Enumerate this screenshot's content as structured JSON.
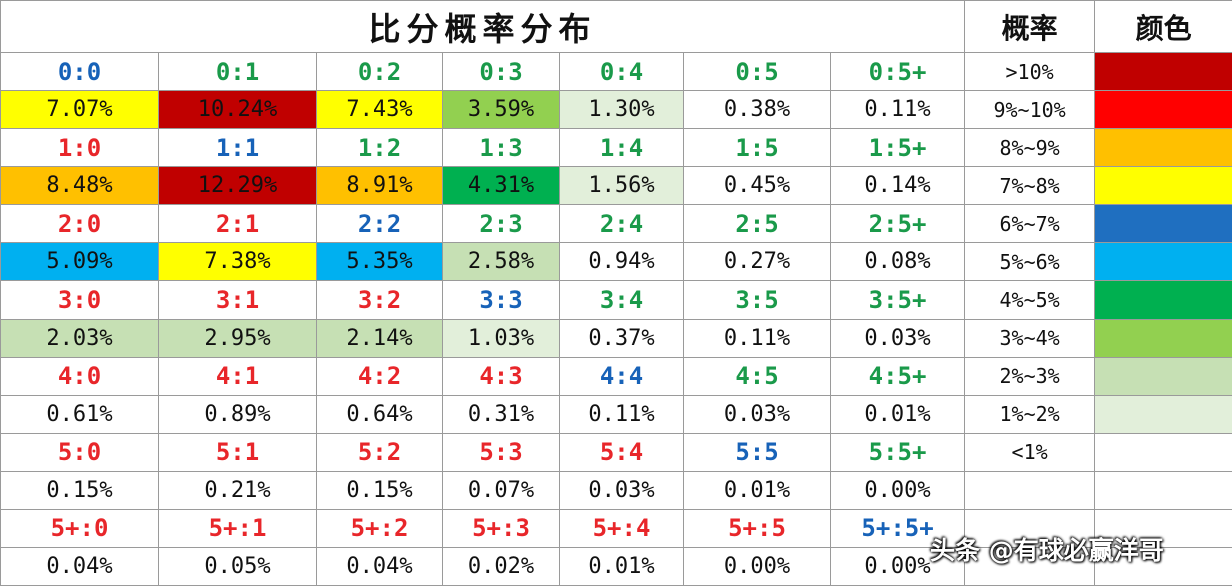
{
  "title": "比分概率分布",
  "legend_headers": {
    "prob": "概率",
    "color": "颜色"
  },
  "colors": {
    "red": "#e8262a",
    "green": "#1a9a4a",
    "blue": "#1762b8",
    "bin_gt10": "#c00000",
    "bin_9_10": "#ff0000",
    "bin_8_9": "#ffc000",
    "bin_7_8": "#ffff00",
    "bin_6_7": "#1f6fc0",
    "bin_5_6": "#00b0f0",
    "bin_4_5": "#00b050",
    "bin_3_4": "#92d050",
    "bin_2_3": "#c6e0b4",
    "bin_1_2": "#e2efda",
    "bin_lt1": "#ffffff"
  },
  "legend": [
    {
      "range": ">10%",
      "color": "#c00000"
    },
    {
      "range": "9%~10%",
      "color": "#ff0000"
    },
    {
      "range": "8%~9%",
      "color": "#ffc000"
    },
    {
      "range": "7%~8%",
      "color": "#ffff00"
    },
    {
      "range": "6%~7%",
      "color": "#1f6fc0"
    },
    {
      "range": "5%~6%",
      "color": "#00b0f0"
    },
    {
      "range": "4%~5%",
      "color": "#00b050"
    },
    {
      "range": "3%~4%",
      "color": "#92d050"
    },
    {
      "range": "2%~3%",
      "color": "#c6e0b4"
    },
    {
      "range": "1%~2%",
      "color": "#e2efda"
    },
    {
      "range": "<1%",
      "color": "#ffffff"
    }
  ],
  "grid": [
    {
      "scores": [
        "0:0",
        "0:1",
        "0:2",
        "0:3",
        "0:4",
        "0:5",
        "0:5+"
      ],
      "score_colors": [
        "blue",
        "green",
        "green",
        "green",
        "green",
        "green",
        "green"
      ],
      "probs": [
        "7.07%",
        "10.24%",
        "7.43%",
        "3.59%",
        "1.30%",
        "0.38%",
        "0.11%"
      ],
      "prob_colors": [
        "#ffff00",
        "#c00000",
        "#ffff00",
        "#92d050",
        "#e2efda",
        "#ffffff",
        "#ffffff"
      ]
    },
    {
      "scores": [
        "1:0",
        "1:1",
        "1:2",
        "1:3",
        "1:4",
        "1:5",
        "1:5+"
      ],
      "score_colors": [
        "red",
        "blue",
        "green",
        "green",
        "green",
        "green",
        "green"
      ],
      "probs": [
        "8.48%",
        "12.29%",
        "8.91%",
        "4.31%",
        "1.56%",
        "0.45%",
        "0.14%"
      ],
      "prob_colors": [
        "#ffc000",
        "#c00000",
        "#ffc000",
        "#00b050",
        "#e2efda",
        "#ffffff",
        "#ffffff"
      ]
    },
    {
      "scores": [
        "2:0",
        "2:1",
        "2:2",
        "2:3",
        "2:4",
        "2:5",
        "2:5+"
      ],
      "score_colors": [
        "red",
        "red",
        "blue",
        "green",
        "green",
        "green",
        "green"
      ],
      "probs": [
        "5.09%",
        "7.38%",
        "5.35%",
        "2.58%",
        "0.94%",
        "0.27%",
        "0.08%"
      ],
      "prob_colors": [
        "#00b0f0",
        "#ffff00",
        "#00b0f0",
        "#c6e0b4",
        "#ffffff",
        "#ffffff",
        "#ffffff"
      ]
    },
    {
      "scores": [
        "3:0",
        "3:1",
        "3:2",
        "3:3",
        "3:4",
        "3:5",
        "3:5+"
      ],
      "score_colors": [
        "red",
        "red",
        "red",
        "blue",
        "green",
        "green",
        "green"
      ],
      "probs": [
        "2.03%",
        "2.95%",
        "2.14%",
        "1.03%",
        "0.37%",
        "0.11%",
        "0.03%"
      ],
      "prob_colors": [
        "#c6e0b4",
        "#c6e0b4",
        "#c6e0b4",
        "#e2efda",
        "#ffffff",
        "#ffffff",
        "#ffffff"
      ]
    },
    {
      "scores": [
        "4:0",
        "4:1",
        "4:2",
        "4:3",
        "4:4",
        "4:5",
        "4:5+"
      ],
      "score_colors": [
        "red",
        "red",
        "red",
        "red",
        "blue",
        "green",
        "green"
      ],
      "probs": [
        "0.61%",
        "0.89%",
        "0.64%",
        "0.31%",
        "0.11%",
        "0.03%",
        "0.01%"
      ],
      "prob_colors": [
        "#ffffff",
        "#ffffff",
        "#ffffff",
        "#ffffff",
        "#ffffff",
        "#ffffff",
        "#ffffff"
      ]
    },
    {
      "scores": [
        "5:0",
        "5:1",
        "5:2",
        "5:3",
        "5:4",
        "5:5",
        "5:5+"
      ],
      "score_colors": [
        "red",
        "red",
        "red",
        "red",
        "red",
        "blue",
        "green"
      ],
      "probs": [
        "0.15%",
        "0.21%",
        "0.15%",
        "0.07%",
        "0.03%",
        "0.01%",
        "0.00%"
      ],
      "prob_colors": [
        "#ffffff",
        "#ffffff",
        "#ffffff",
        "#ffffff",
        "#ffffff",
        "#ffffff",
        "#ffffff"
      ]
    },
    {
      "scores": [
        "5+:0",
        "5+:1",
        "5+:2",
        "5+:3",
        "5+:4",
        "5+:5",
        "5+:5+"
      ],
      "score_colors": [
        "red",
        "red",
        "red",
        "red",
        "red",
        "red",
        "blue"
      ],
      "probs": [
        "0.04%",
        "0.05%",
        "0.04%",
        "0.02%",
        "0.01%",
        "0.00%",
        "0.00%"
      ],
      "prob_colors": [
        "#ffffff",
        "#ffffff",
        "#ffffff",
        "#ffffff",
        "#ffffff",
        "#ffffff",
        "#ffffff"
      ]
    }
  ],
  "watermark": "头条 @有球必赢洋哥"
}
